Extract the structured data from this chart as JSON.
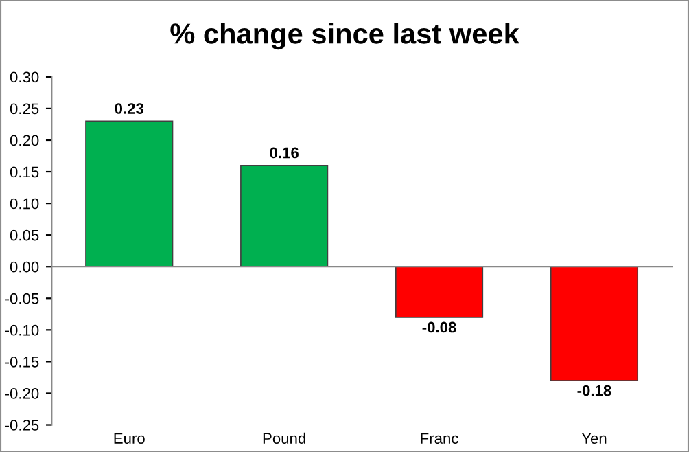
{
  "chart_data": {
    "type": "bar",
    "title": "% change since last week",
    "categories": [
      "Euro",
      "Pound",
      "Franc",
      "Yen"
    ],
    "values": [
      0.23,
      0.16,
      -0.08,
      -0.18
    ],
    "colors": [
      "#00b050",
      "#00b050",
      "#ff0000",
      "#ff0000"
    ],
    "data_labels": true,
    "ylim": [
      -0.25,
      0.3
    ],
    "yticks": [
      {
        "value": 0.3,
        "label": "0.30"
      },
      {
        "value": 0.25,
        "label": "0.25"
      },
      {
        "value": 0.2,
        "label": "0.20"
      },
      {
        "value": 0.15,
        "label": "0.15"
      },
      {
        "value": 0.1,
        "label": "0.10"
      },
      {
        "value": 0.05,
        "label": "0.05"
      },
      {
        "value": 0.0,
        "label": "0.00"
      },
      {
        "value": -0.05,
        "label": "-0.05"
      },
      {
        "value": -0.1,
        "label": "-0.10"
      },
      {
        "value": -0.15,
        "label": "-0.15"
      },
      {
        "value": -0.2,
        "label": "-0.20"
      },
      {
        "value": -0.25,
        "label": "-0.25"
      }
    ]
  }
}
